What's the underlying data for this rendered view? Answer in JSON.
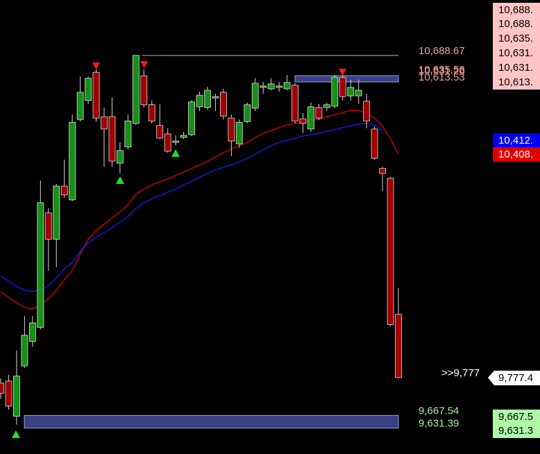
{
  "chart_data": {
    "type": "candlestick",
    "ylim": [
      9558,
      10846
    ],
    "up_color": "#169016",
    "down_color": "#a00000",
    "candles": {
      "open": [
        9759,
        9765,
        9665,
        9808,
        9877,
        9917,
        10242,
        10167,
        10318,
        10279,
        10507,
        10561,
        10641,
        10515,
        10515,
        10383,
        10429,
        10496,
        10631,
        10549,
        10490,
        10466,
        10442,
        10456,
        10464,
        10543,
        10541,
        10568,
        10584,
        10511,
        10438,
        10501,
        10539,
        10598,
        10594,
        10598,
        10594,
        10604,
        10509,
        10480,
        10541,
        10541,
        10545,
        10626,
        10574,
        10574,
        10559,
        10480,
        10368,
        10340,
        9954
      ],
      "high": [
        9773,
        9783,
        9852,
        9950,
        9950,
        10334,
        10255,
        10324,
        10393,
        10521,
        10629,
        10629,
        10649,
        10541,
        10570,
        10442,
        10521,
        10689,
        10649,
        10561,
        10551,
        10482,
        10462,
        10472,
        10561,
        10586,
        10600,
        10580,
        10594,
        10521,
        10507,
        10555,
        10624,
        10614,
        10624,
        10614,
        10633,
        10610,
        10525,
        10555,
        10551,
        10555,
        10633,
        10633,
        10620,
        10620,
        10580,
        10488,
        10373,
        10344,
        10029
      ],
      "low": [
        9714,
        9684,
        9641,
        9802,
        9862,
        9911,
        10078,
        10088,
        10285,
        10275,
        10501,
        10551,
        10501,
        10373,
        10373,
        10354,
        10423,
        10492,
        10541,
        10496,
        10452,
        10413,
        10433,
        10452,
        10460,
        10531,
        10535,
        10531,
        10507,
        10403,
        10427,
        10496,
        10531,
        10580,
        10590,
        10586,
        10590,
        10496,
        10468,
        10472,
        10505,
        10531,
        10539,
        10561,
        10561,
        10551,
        10482,
        10393,
        10304,
        9921,
        9773
      ],
      "close": [
        9730,
        9694,
        9779,
        9895,
        9930,
        10271,
        10167,
        10318,
        10293,
        10499,
        10584,
        10624,
        10511,
        10480,
        10389,
        10419,
        10503,
        10689,
        10549,
        10503,
        10454,
        10417,
        10446,
        10462,
        10557,
        10576,
        10590,
        10572,
        10517,
        10446,
        10499,
        10549,
        10610,
        10602,
        10608,
        10602,
        10612,
        10503,
        10496,
        10543,
        10511,
        10549,
        10627,
        10572,
        10598,
        10590,
        10503,
        10397,
        10354,
        9925,
        9775
      ]
    },
    "moving_averages": [
      {
        "color": "#e00000",
        "values": [
          10019,
          10003,
          9988,
          9974,
          9970,
          9980,
          10000,
          10023,
          10053,
          10078,
          10127,
          10167,
          10192,
          10210,
          10228,
          10245,
          10265,
          10295,
          10310,
          10322,
          10330,
          10338,
          10348,
          10358,
          10368,
          10379,
          10389,
          10401,
          10413,
          10423,
          10433,
          10442,
          10456,
          10468,
          10476,
          10484,
          10492,
          10496,
          10499,
          10503,
          10509,
          10515,
          10521,
          10527,
          10533,
          10533,
          10525,
          10511,
          10488,
          10452,
          10409
        ]
      },
      {
        "color": "#1a1aff",
        "values": [
          10062,
          10049,
          10033,
          10023,
          10019,
          10023,
          10035,
          10058,
          10082,
          10102,
          10133,
          10157,
          10173,
          10186,
          10200,
          10216,
          10232,
          10255,
          10271,
          10283,
          10291,
          10301,
          10310,
          10322,
          10332,
          10344,
          10354,
          10364,
          10371,
          10379,
          10387,
          10397,
          10409,
          10421,
          10433,
          10442,
          10448,
          10454,
          10460,
          10464,
          10468,
          10474,
          10478,
          10484,
          10490,
          10494,
          10496,
          10492,
          10476,
          null,
          null
        ]
      }
    ],
    "levels": [
      {
        "value": 10688.67,
        "label": "10,688.67",
        "color": "#f4a0a0",
        "line": true
      },
      {
        "value": 10635.56,
        "label": "10,635.56",
        "color": "#f4a0a0",
        "line": false
      },
      {
        "value": 10631.26,
        "label": "10,631.26",
        "color": "#f4a0a0",
        "line": false
      },
      {
        "value": 10613.53,
        "label": "10,613.53",
        "color": "#f4a0a0",
        "line": false
      },
      {
        "value": 9667.54,
        "label": "9,667.54",
        "color": "#a8f0a0",
        "line": false
      },
      {
        "value": 9631.39,
        "label": "9,631.39",
        "color": "#a8f0a0",
        "line": false
      }
    ],
    "zones": [
      {
        "high": 10631.26,
        "low": 10613.53,
        "color": "#3a3f86"
      },
      {
        "high": 9667.54,
        "low": 9631.39,
        "color": "#3a3f86"
      }
    ],
    "axis_labels": [
      {
        "value": 10688.67,
        "label": "10,688.",
        "bg": "#ffc4c4",
        "fg": "#000000"
      },
      {
        "value": 10688.67,
        "label": "10,688.",
        "bg": "#ffc4c4",
        "fg": "#000000"
      },
      {
        "value": 10635.56,
        "label": "10,635.",
        "bg": "#ffc4c4",
        "fg": "#000000"
      },
      {
        "value": 10631.26,
        "label": "10,631.",
        "bg": "#ffc4c4",
        "fg": "#000000"
      },
      {
        "value": 10631.26,
        "label": "10,631.",
        "bg": "#ffc4c4",
        "fg": "#000000"
      },
      {
        "value": 10613.53,
        "label": "10,613.",
        "bg": "#ffc4c4",
        "fg": "#000000"
      },
      {
        "value": 10412,
        "label": "10,412.",
        "bg": "#0000ee",
        "fg": "#ffffff"
      },
      {
        "value": 10408,
        "label": "10,408.",
        "bg": "#e00000",
        "fg": "#ffffff"
      },
      {
        "value": 9777.4,
        "label": "9,777.4",
        "bg": "#ffffff",
        "fg": "#000000"
      },
      {
        "value": 9667.54,
        "label": "9,667.5",
        "bg": "#b0f8a8",
        "fg": "#000000"
      },
      {
        "value": 9631.39,
        "label": "9,631.3",
        "bg": "#b0f8a8",
        "fg": "#000000"
      }
    ],
    "last_label": ">>9,777"
  }
}
